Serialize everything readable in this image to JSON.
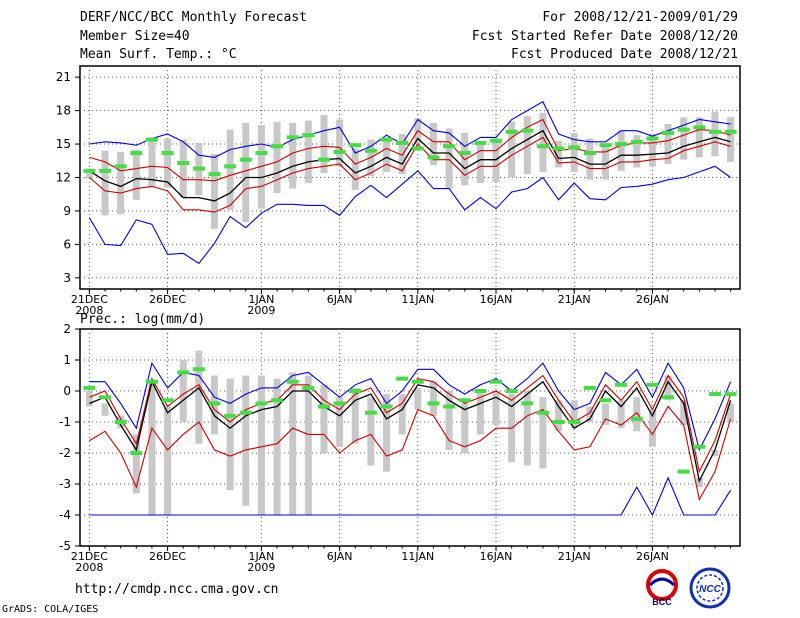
{
  "header": {
    "title": "DERF/NCC/BCC Monthly Forecast",
    "member_size": "Member Size=40",
    "variable": "Mean Surf. Temp.: °C",
    "period": "For 2008/12/21-2009/01/29",
    "started": "Fcst Started Refer Date 2008/12/20",
    "produced": "Fcst Produced Date 2008/12/21"
  },
  "footer": {
    "url": "http://cmdp.ncc.cma.gov.cn",
    "credit": "GrADS: COLA/IGES",
    "logo1_text": "BCC",
    "logo2_text": "NCC"
  },
  "colors": {
    "upper": "#0000dd",
    "lower": "#0000dd",
    "band_hi": "#cc0000",
    "band_lo": "#cc0000",
    "mean": "#000000",
    "box": "#c8c8c8",
    "member": "#44dd44"
  },
  "chart_data": [
    {
      "type": "line",
      "title": "Mean Surf. Temp.: °C",
      "x_tick_labels": [
        "21DEC",
        "26DEC",
        "1JAN",
        "6JAN",
        "11JAN",
        "16JAN",
        "21JAN",
        "26JAN"
      ],
      "x_tick_days": [
        1,
        6,
        12,
        17,
        22,
        27,
        32,
        37
      ],
      "x_sublabels": {
        "1": "2008",
        "12": "2009"
      },
      "ylim": [
        2,
        22
      ],
      "y_ticks": [
        3,
        6,
        9,
        12,
        15,
        18,
        21
      ],
      "grid": true,
      "series": [
        {
          "name": "upper",
          "role": "upper",
          "values": [
            15.0,
            15.2,
            15.1,
            14.9,
            15.5,
            15.9,
            15.2,
            14.0,
            13.8,
            14.5,
            14.8,
            15.0,
            14.7,
            15.4,
            15.8,
            16.2,
            16.5,
            14.2,
            14.8,
            15.8,
            15.0,
            17.2,
            16.2,
            16.0,
            14.8,
            15.6,
            15.6,
            17.2,
            18.0,
            18.8,
            15.9,
            15.4,
            15.2,
            15.2,
            16.2,
            16.2,
            15.7,
            16.2,
            16.7,
            17.2,
            17.0,
            16.8
          ]
        },
        {
          "name": "band-high",
          "role": "band_hi",
          "values": [
            13.8,
            13.4,
            12.6,
            12.8,
            13.0,
            12.9,
            11.8,
            11.8,
            11.7,
            12.2,
            12.6,
            13.0,
            13.4,
            14.2,
            14.6,
            14.8,
            14.7,
            13.2,
            13.8,
            14.6,
            14.0,
            16.2,
            15.2,
            15.2,
            13.6,
            14.4,
            14.4,
            15.6,
            16.5,
            17.2,
            14.4,
            14.6,
            14.3,
            14.3,
            14.9,
            15.1,
            15.1,
            15.3,
            15.8,
            16.3,
            16.2,
            15.8
          ]
        },
        {
          "name": "mean",
          "role": "mean",
          "values": [
            12.6,
            11.7,
            11.2,
            11.9,
            11.8,
            11.6,
            10.2,
            10.2,
            9.9,
            10.6,
            12.0,
            12.0,
            12.4,
            13.0,
            13.4,
            13.6,
            13.7,
            12.4,
            13.0,
            13.8,
            13.2,
            15.5,
            14.2,
            14.2,
            12.8,
            13.6,
            13.6,
            14.6,
            15.4,
            16.2,
            13.7,
            13.8,
            13.2,
            13.2,
            14.0,
            14.0,
            14.1,
            14.2,
            14.8,
            15.2,
            15.6,
            15.2
          ]
        },
        {
          "name": "band-low",
          "role": "band_lo",
          "values": [
            12.0,
            10.8,
            10.6,
            11.0,
            11.2,
            10.8,
            9.1,
            9.1,
            8.9,
            9.5,
            11.0,
            11.2,
            11.8,
            12.4,
            12.8,
            13.0,
            13.2,
            11.8,
            12.4,
            13.2,
            12.6,
            15.0,
            13.6,
            13.6,
            12.2,
            13.0,
            13.0,
            14.0,
            14.8,
            15.6,
            13.3,
            13.4,
            12.8,
            12.8,
            13.4,
            13.4,
            13.6,
            13.7,
            14.4,
            14.8,
            15.2,
            14.8
          ]
        },
        {
          "name": "lower",
          "role": "lower",
          "values": [
            8.4,
            6.0,
            5.9,
            8.2,
            7.8,
            5.1,
            5.2,
            4.3,
            6.1,
            8.5,
            7.5,
            8.8,
            9.6,
            9.6,
            9.5,
            9.5,
            8.6,
            10.3,
            11.3,
            10.2,
            11.4,
            12.6,
            11.0,
            11.0,
            9.1,
            10.2,
            9.2,
            10.7,
            11.0,
            12.0,
            10.0,
            11.5,
            10.1,
            10.0,
            11.1,
            11.2,
            11.4,
            11.8,
            12.0,
            12.5,
            13.0,
            12.0
          ]
        },
        {
          "name": "box-top",
          "role": "box_top",
          "values": [
            12.5,
            14.4,
            14.3,
            14.5,
            15.6,
            15.5,
            15.4,
            15.1,
            14.1,
            16.3,
            16.9,
            16.7,
            17.0,
            16.9,
            17.1,
            17.6,
            17.2,
            14.6,
            15.4,
            15.3,
            15.9,
            17.3,
            16.9,
            16.4,
            16.0,
            15.2,
            15.5,
            17.0,
            17.5,
            17.8,
            15.3,
            16.0,
            15.5,
            14.9,
            16.2,
            15.8,
            15.9,
            16.8,
            17.4,
            17.4,
            17.9,
            17.4
          ]
        },
        {
          "name": "box-bottom",
          "role": "box_bottom",
          "values": [
            11.9,
            8.6,
            8.7,
            10.0,
            11.1,
            11.1,
            10.2,
            10.4,
            7.4,
            9.1,
            8.0,
            9.2,
            10.6,
            11.0,
            11.5,
            12.4,
            13.0,
            10.9,
            12.1,
            12.5,
            12.3,
            15.0,
            13.1,
            11.0,
            11.3,
            11.5,
            11.6,
            12.0,
            12.3,
            12.5,
            12.9,
            12.5,
            11.8,
            11.8,
            12.6,
            12.9,
            13.0,
            13.2,
            13.6,
            13.8,
            13.9,
            13.4
          ]
        },
        {
          "name": "green-members",
          "role": "member",
          "values": [
            12.6,
            12.6,
            13.0,
            14.2,
            15.4,
            14.2,
            13.3,
            12.8,
            12.3,
            13.0,
            13.6,
            14.2,
            14.8,
            15.6,
            15.8,
            13.6,
            14.3,
            14.9,
            14.4,
            15.4,
            15.1,
            14.6,
            13.8,
            14.8,
            14.2,
            15.1,
            15.3,
            16.1,
            16.2,
            14.8,
            14.6,
            14.7,
            14.2,
            14.9,
            15.0,
            15.2,
            15.5,
            16.0,
            16.3,
            16.5,
            16.1,
            16.1
          ]
        }
      ]
    },
    {
      "type": "line",
      "title": "Prec.: log(mm/d)",
      "x_tick_labels": [
        "21DEC",
        "26DEC",
        "1JAN",
        "6JAN",
        "11JAN",
        "16JAN",
        "21JAN",
        "26JAN"
      ],
      "x_tick_days": [
        1,
        6,
        12,
        17,
        22,
        27,
        32,
        37
      ],
      "x_sublabels": {
        "1": "2008",
        "12": "2009"
      },
      "ylim": [
        -5,
        2
      ],
      "y_ticks": [
        -5,
        -4,
        -3,
        -2,
        -1,
        0,
        1,
        2
      ],
      "grid": true,
      "series": [
        {
          "name": "upper",
          "role": "upper",
          "values": [
            0.3,
            0.3,
            -0.4,
            -1.2,
            0.9,
            0.1,
            0.6,
            0.5,
            -0.2,
            -0.4,
            -0.1,
            0.1,
            0.1,
            0.5,
            0.6,
            0.2,
            -0.2,
            0.2,
            0.4,
            -0.4,
            0.0,
            0.7,
            0.7,
            0.2,
            -0.1,
            0.2,
            0.4,
            0.0,
            0.4,
            0.9,
            0.0,
            -0.6,
            -0.4,
            0.6,
            0.2,
            0.7,
            -0.2,
            0.9,
            0.1,
            -1.9,
            -0.9,
            0.3
          ]
        },
        {
          "name": "band-high",
          "role": "band_hi",
          "values": [
            -0.2,
            0.0,
            -0.9,
            -1.7,
            0.4,
            -0.5,
            -0.1,
            0.2,
            -0.6,
            -1.0,
            -0.6,
            -0.4,
            -0.3,
            0.2,
            0.2,
            -0.3,
            -0.6,
            -0.1,
            0.1,
            -0.7,
            -0.4,
            0.4,
            0.3,
            -0.1,
            -0.4,
            -0.2,
            0.0,
            -0.3,
            0.1,
            0.5,
            -0.3,
            -1.0,
            -0.7,
            0.2,
            -0.3,
            0.3,
            -0.6,
            0.5,
            -0.2,
            -2.6,
            -1.6,
            -0.1
          ]
        },
        {
          "name": "mean",
          "role": "mean",
          "values": [
            -0.4,
            -0.2,
            -1.1,
            -1.9,
            0.3,
            -0.7,
            -0.3,
            0.1,
            -0.8,
            -1.2,
            -0.8,
            -0.6,
            -0.5,
            0.0,
            0.0,
            -0.5,
            -0.8,
            -0.3,
            -0.1,
            -0.9,
            -0.6,
            0.2,
            0.1,
            -0.3,
            -0.6,
            -0.4,
            -0.2,
            -0.5,
            -0.1,
            0.3,
            -0.5,
            -1.2,
            -0.9,
            0.0,
            -0.5,
            0.1,
            -0.8,
            0.3,
            -0.4,
            -2.9,
            -1.9,
            -0.3
          ]
        },
        {
          "name": "band-low",
          "role": "band_lo",
          "values": [
            -1.6,
            -1.3,
            -2.0,
            -3.1,
            -1.2,
            -1.9,
            -1.4,
            -1.0,
            -1.9,
            -2.1,
            -1.9,
            -1.8,
            -1.7,
            -1.2,
            -1.4,
            -1.4,
            -2.0,
            -1.6,
            -1.4,
            -2.1,
            -1.9,
            -0.6,
            -0.8,
            -1.6,
            -1.8,
            -1.6,
            -1.2,
            -1.2,
            -0.8,
            -0.6,
            -1.3,
            -1.9,
            -1.8,
            -0.9,
            -1.1,
            -0.7,
            -1.4,
            -0.5,
            -1.1,
            -3.5,
            -2.6,
            -0.9
          ]
        },
        {
          "name": "lower",
          "role": "lower",
          "values": [
            -4.0,
            -4.0,
            -4.0,
            -4.0,
            -4.0,
            -4.0,
            -4.0,
            -4.0,
            -4.0,
            -4.0,
            -4.0,
            -4.0,
            -4.0,
            -4.0,
            -4.0,
            -4.0,
            -4.0,
            -4.0,
            -4.0,
            -4.0,
            -4.0,
            -4.0,
            -4.0,
            -4.0,
            -4.0,
            -4.0,
            -4.0,
            -4.0,
            -4.0,
            -4.0,
            -4.0,
            -4.0,
            -4.0,
            -4.0,
            -4.0,
            -3.1,
            -4.0,
            -2.8,
            -4.0,
            -4.0,
            -4.0,
            -3.2
          ]
        },
        {
          "name": "box-top",
          "role": "box_top",
          "values": [
            0.0,
            -0.4,
            -0.8,
            -1.4,
            0.3,
            -0.5,
            1.0,
            1.3,
            0.5,
            0.4,
            0.5,
            0.5,
            0.4,
            0.6,
            0.5,
            0.2,
            -0.2,
            0.1,
            -0.2,
            -0.1,
            -0.1,
            0.1,
            0.3,
            0.0,
            -0.4,
            0.0,
            0.0,
            -0.1,
            0.0,
            -0.2,
            -0.3,
            -0.3,
            -0.5,
            -0.4,
            -0.3,
            -0.2,
            -0.6,
            0.5,
            -0.3,
            -2.8,
            -1.9,
            -0.4
          ]
        },
        {
          "name": "box-bottom",
          "role": "box_bottom",
          "values": [
            -0.5,
            -0.8,
            -1.2,
            -3.3,
            -4.0,
            -4.0,
            -1.0,
            -1.7,
            -1.4,
            -3.2,
            -3.7,
            -4.0,
            -4.0,
            -4.0,
            -4.0,
            -2.0,
            -1.8,
            -1.7,
            -2.4,
            -2.6,
            -1.4,
            -0.6,
            -0.8,
            -1.9,
            -2.0,
            -1.4,
            -1.1,
            -2.3,
            -2.4,
            -2.5,
            -1.3,
            -1.2,
            -1.0,
            -1.1,
            -1.2,
            -1.3,
            -1.8,
            -0.3,
            -1.1,
            -3.1,
            -2.1,
            -1.0
          ]
        },
        {
          "name": "green-members",
          "role": "member",
          "values": [
            0.1,
            -0.2,
            -1.0,
            -2.0,
            0.3,
            -0.3,
            0.6,
            0.7,
            -0.4,
            -0.8,
            -0.7,
            -0.4,
            -0.3,
            0.3,
            0.1,
            -0.5,
            -0.4,
            0.0,
            -0.7,
            -0.5,
            0.4,
            0.3,
            -0.4,
            -0.5,
            -0.3,
            0.0,
            0.3,
            0.0,
            -0.4,
            -0.7,
            -1.0,
            -1.0,
            0.1,
            -0.3,
            0.2,
            -0.9,
            0.2,
            -0.2,
            -2.6,
            -1.8,
            -0.1,
            -0.1
          ]
        }
      ]
    }
  ]
}
